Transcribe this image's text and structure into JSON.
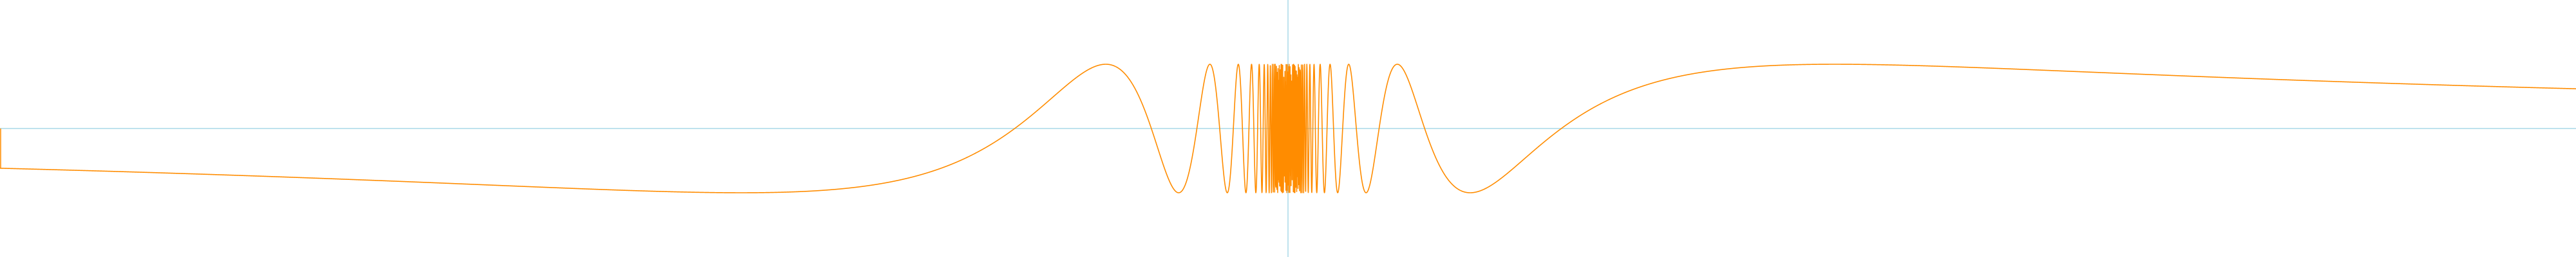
{
  "chart_data": {
    "type": "line",
    "function": "sin(1/x)",
    "xlim": [
      -1.5,
      1.5
    ],
    "ylim": [
      -2,
      2
    ],
    "grid": false,
    "series": [
      {
        "color": "#ff8c00"
      }
    ],
    "axes": {
      "color": "#a8d8e8"
    }
  }
}
